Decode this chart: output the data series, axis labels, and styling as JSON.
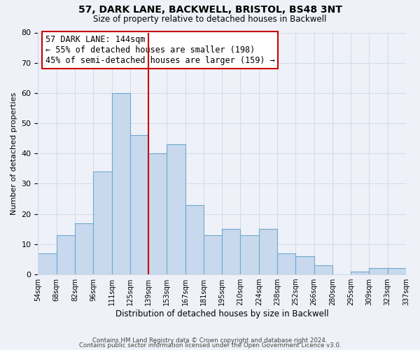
{
  "title": "57, DARK LANE, BACKWELL, BRISTOL, BS48 3NT",
  "subtitle": "Size of property relative to detached houses in Backwell",
  "xlabel": "Distribution of detached houses by size in Backwell",
  "ylabel": "Number of detached properties",
  "bar_labels": [
    "54sqm",
    "68sqm",
    "82sqm",
    "96sqm",
    "111sqm",
    "125sqm",
    "139sqm",
    "153sqm",
    "167sqm",
    "181sqm",
    "195sqm",
    "210sqm",
    "224sqm",
    "238sqm",
    "252sqm",
    "266sqm",
    "280sqm",
    "295sqm",
    "309sqm",
    "323sqm",
    "337sqm"
  ],
  "bar_values": [
    7,
    13,
    17,
    34,
    60,
    46,
    40,
    43,
    23,
    13,
    15,
    13,
    15,
    7,
    6,
    3,
    0,
    1,
    2,
    2
  ],
  "bar_color": "#c8d9ed",
  "bar_edge_color": "#6fa8d0",
  "vline_x_index": 6,
  "vline_color": "#cc0000",
  "annotation_title": "57 DARK LANE: 144sqm",
  "annotation_line1": "← 55% of detached houses are smaller (198)",
  "annotation_line2": "45% of semi-detached houses are larger (159) →",
  "annotation_box_color": "#ffffff",
  "annotation_box_edge": "#cc0000",
  "ylim": [
    0,
    80
  ],
  "yticks": [
    0,
    10,
    20,
    30,
    40,
    50,
    60,
    70,
    80
  ],
  "grid_color": "#d4dce8",
  "bg_color": "#eef2f8",
  "footer1": "Contains HM Land Registry data © Crown copyright and database right 2024.",
  "footer2": "Contains public sector information licensed under the Open Government Licence v3.0."
}
